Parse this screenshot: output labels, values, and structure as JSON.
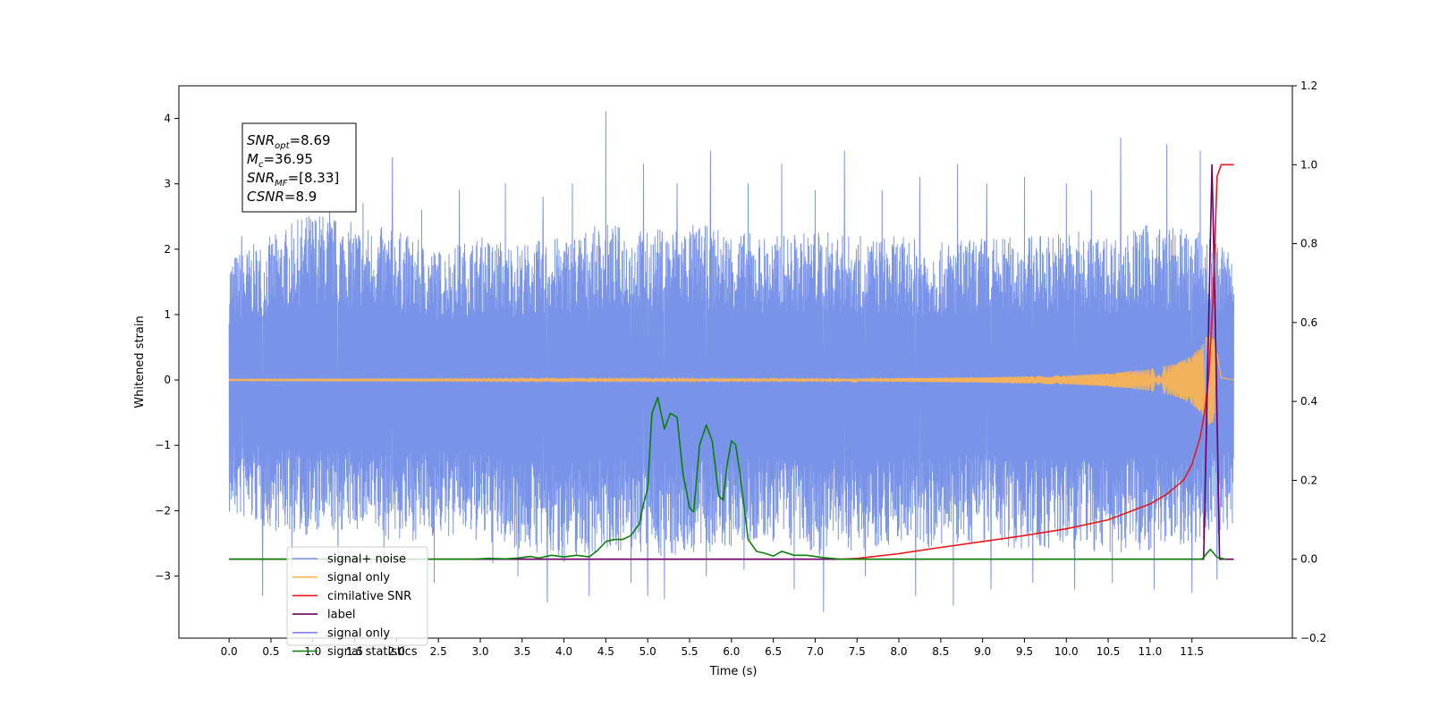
{
  "chart_data": {
    "type": "line",
    "xlabel": "Time (s)",
    "ylabel": "Whitened strain",
    "xlim": [
      -0.6,
      12.7
    ],
    "ylim": [
      -3.95,
      4.5
    ],
    "y2lim": [
      -0.2,
      1.2
    ],
    "x_ticks": [
      0.0,
      0.5,
      1.0,
      1.5,
      2.0,
      2.5,
      3.0,
      3.5,
      4.0,
      4.5,
      5.0,
      5.5,
      6.0,
      6.5,
      7.0,
      7.5,
      8.0,
      8.5,
      9.0,
      9.5,
      10.0,
      10.5,
      11.0,
      11.5
    ],
    "x_tick_labels": [
      "0.0",
      "0.5",
      "1.0",
      "1.5",
      "2.0",
      "2.5",
      "3.0",
      "3.5",
      "4.0",
      "4.5",
      "5.0",
      "5.5",
      "6.0",
      "6.5",
      "7.0",
      "7.5",
      "8.0",
      "8.5",
      "9.0",
      "9.5",
      "10.0",
      "10.5",
      "11.0",
      "11.5"
    ],
    "y_ticks": [
      -3,
      -2,
      -1,
      0,
      1,
      2,
      3,
      4
    ],
    "y_tick_labels": [
      "−3",
      "−2",
      "−1",
      "0",
      "1",
      "2",
      "3",
      "4"
    ],
    "y2_ticks": [
      -0.2,
      0.0,
      0.2,
      0.4,
      0.6,
      0.8,
      1.0,
      1.2
    ],
    "y2_tick_labels": [
      "−0.2",
      "0.0",
      "0.2",
      "0.4",
      "0.6",
      "0.8",
      "1.0",
      "1.2"
    ],
    "grid": false,
    "legend_position": "lower-left",
    "annotation": {
      "lines": [
        {
          "base": "SNR",
          "sub": "opt",
          "value": "=8.69"
        },
        {
          "base": "M",
          "sub": "c",
          "value": "=36.95"
        },
        {
          "base": "SNR",
          "sub": "MF",
          "value": "=[8.33]"
        },
        {
          "base": "CSNR",
          "sub": "",
          "value": "=8.9"
        }
      ]
    },
    "series": [
      {
        "name": "signal+ noise",
        "axis": "left",
        "color": "#7893e7",
        "x_range": [
          0.0,
          12.0
        ],
        "envelope_upper": [
          [
            0.0,
            1.9
          ],
          [
            0.5,
            2.2
          ],
          [
            1.0,
            2.6
          ],
          [
            1.5,
            2.4
          ],
          [
            2.0,
            2.3
          ],
          [
            2.5,
            2.0
          ],
          [
            3.0,
            2.2
          ],
          [
            3.5,
            2.1
          ],
          [
            4.0,
            2.2
          ],
          [
            4.5,
            2.4
          ],
          [
            5.0,
            2.3
          ],
          [
            5.5,
            2.4
          ],
          [
            6.0,
            2.3
          ],
          [
            6.5,
            2.2
          ],
          [
            7.0,
            2.3
          ],
          [
            7.5,
            2.2
          ],
          [
            8.0,
            2.2
          ],
          [
            8.5,
            2.1
          ],
          [
            9.0,
            2.2
          ],
          [
            9.5,
            2.2
          ],
          [
            10.0,
            2.3
          ],
          [
            10.5,
            2.2
          ],
          [
            11.0,
            2.4
          ],
          [
            11.5,
            2.3
          ],
          [
            12.0,
            2.0
          ]
        ],
        "envelope_lower": [
          [
            0.0,
            -2.1
          ],
          [
            0.5,
            -2.3
          ],
          [
            1.0,
            -2.4
          ],
          [
            1.5,
            -2.3
          ],
          [
            2.0,
            -2.5
          ],
          [
            2.5,
            -2.4
          ],
          [
            3.0,
            -2.5
          ],
          [
            3.5,
            -2.6
          ],
          [
            4.0,
            -2.8
          ],
          [
            4.5,
            -2.6
          ],
          [
            5.0,
            -2.7
          ],
          [
            5.5,
            -2.7
          ],
          [
            6.0,
            -2.6
          ],
          [
            6.5,
            -2.5
          ],
          [
            7.0,
            -2.7
          ],
          [
            7.5,
            -2.6
          ],
          [
            8.0,
            -2.5
          ],
          [
            8.5,
            -2.6
          ],
          [
            9.0,
            -2.5
          ],
          [
            9.5,
            -2.6
          ],
          [
            10.0,
            -2.6
          ],
          [
            10.5,
            -2.7
          ],
          [
            11.0,
            -2.6
          ],
          [
            11.5,
            -2.5
          ],
          [
            12.0,
            -2.3
          ]
        ],
        "peaks": [
          [
            0.15,
            2.2
          ],
          [
            0.4,
            2.5
          ],
          [
            0.75,
            2.9
          ],
          [
            1.2,
            3.1
          ],
          [
            1.6,
            2.7
          ],
          [
            1.95,
            3.4
          ],
          [
            2.3,
            2.6
          ],
          [
            2.75,
            2.9
          ],
          [
            3.3,
            3.0
          ],
          [
            3.75,
            2.8
          ],
          [
            4.1,
            3.0
          ],
          [
            4.5,
            4.1
          ],
          [
            4.95,
            3.3
          ],
          [
            5.35,
            3.0
          ],
          [
            5.75,
            3.5
          ],
          [
            6.2,
            3.0
          ],
          [
            6.6,
            3.3
          ],
          [
            7.0,
            2.9
          ],
          [
            7.35,
            3.5
          ],
          [
            7.8,
            2.9
          ],
          [
            8.25,
            3.1
          ],
          [
            8.7,
            3.3
          ],
          [
            9.05,
            3.0
          ],
          [
            9.5,
            3.1
          ],
          [
            10.0,
            3.0
          ],
          [
            10.3,
            2.9
          ],
          [
            10.65,
            3.7
          ],
          [
            11.2,
            3.6
          ],
          [
            11.6,
            3.5
          ]
        ],
        "troughs": [
          [
            0.4,
            -3.3
          ],
          [
            0.75,
            -2.9
          ],
          [
            1.3,
            -2.8
          ],
          [
            1.85,
            -2.9
          ],
          [
            2.45,
            -3.1
          ],
          [
            3.15,
            -2.8
          ],
          [
            3.45,
            -3.0
          ],
          [
            3.8,
            -3.4
          ],
          [
            4.3,
            -3.3
          ],
          [
            4.8,
            -3.1
          ],
          [
            5.0,
            -3.3
          ],
          [
            5.2,
            -3.35
          ],
          [
            5.7,
            -3.0
          ],
          [
            6.15,
            -2.9
          ],
          [
            6.75,
            -3.2
          ],
          [
            7.1,
            -3.55
          ],
          [
            7.6,
            -3.0
          ],
          [
            8.2,
            -3.3
          ],
          [
            8.65,
            -3.45
          ],
          [
            9.1,
            -3.2
          ],
          [
            9.6,
            -3.1
          ],
          [
            10.1,
            -3.2
          ],
          [
            10.55,
            -3.1
          ],
          [
            11.05,
            -3.2
          ],
          [
            11.5,
            -3.25
          ],
          [
            11.8,
            -3.05
          ]
        ]
      },
      {
        "name": "signal only",
        "axis": "left",
        "color": "#ffb64d",
        "x_range": [
          0.0,
          12.0
        ],
        "amplitude_envelope": [
          [
            0.0,
            0.01
          ],
          [
            7.5,
            0.02
          ],
          [
            9.0,
            0.04
          ],
          [
            10.0,
            0.07
          ],
          [
            10.5,
            0.1
          ],
          [
            11.0,
            0.17
          ],
          [
            11.3,
            0.25
          ],
          [
            11.5,
            0.38
          ],
          [
            11.6,
            0.5
          ],
          [
            11.7,
            0.7
          ],
          [
            11.8,
            0.6
          ],
          [
            11.85,
            0.05
          ],
          [
            12.0,
            0.0
          ]
        ]
      },
      {
        "name": "cimilative SNR",
        "axis": "right",
        "color": "#e8191a",
        "x": [
          0.0,
          7.3,
          7.5,
          8.0,
          8.5,
          9.0,
          9.5,
          10.0,
          10.5,
          11.0,
          11.2,
          11.4,
          11.5,
          11.6,
          11.65,
          11.7,
          11.75,
          11.8,
          11.85,
          11.9,
          12.0
        ],
        "y": [
          0.0,
          0.0,
          0.002,
          0.014,
          0.03,
          0.045,
          0.06,
          0.077,
          0.1,
          0.14,
          0.165,
          0.2,
          0.24,
          0.31,
          0.37,
          0.46,
          0.65,
          0.97,
          1.0,
          1.0,
          1.0
        ]
      },
      {
        "name": "label",
        "axis": "right",
        "color": "#6a006a",
        "x": [
          0.0,
          11.6,
          11.64,
          11.7,
          11.74,
          11.78,
          11.83,
          12.0
        ],
        "y": [
          0.0,
          0.0,
          0.0,
          0.6,
          1.0,
          0.6,
          0.0,
          0.0
        ]
      },
      {
        "name": "signal only",
        "axis": "right",
        "color": "#8080ff",
        "x": [],
        "y": []
      },
      {
        "name": "signal statistics",
        "axis": "right",
        "color": "#0b7f0b",
        "x": [
          0.0,
          2.9,
          3.1,
          3.3,
          3.45,
          3.6,
          3.7,
          3.85,
          4.0,
          4.15,
          4.3,
          4.4,
          4.5,
          4.6,
          4.7,
          4.8,
          4.9,
          4.95,
          5.0,
          5.05,
          5.12,
          5.2,
          5.27,
          5.35,
          5.42,
          5.5,
          5.55,
          5.62,
          5.7,
          5.77,
          5.85,
          5.9,
          5.95,
          6.0,
          6.05,
          6.1,
          6.2,
          6.3,
          6.4,
          6.5,
          6.6,
          6.75,
          6.9,
          7.1,
          7.3,
          11.5,
          11.62,
          11.72,
          11.8,
          11.9
        ],
        "y": [
          0.0,
          0.0,
          0.002,
          0.001,
          0.003,
          0.007,
          0.003,
          0.01,
          0.006,
          0.01,
          0.006,
          0.022,
          0.045,
          0.05,
          0.05,
          0.06,
          0.09,
          0.14,
          0.18,
          0.37,
          0.41,
          0.33,
          0.37,
          0.36,
          0.22,
          0.13,
          0.12,
          0.29,
          0.34,
          0.3,
          0.16,
          0.15,
          0.24,
          0.3,
          0.29,
          0.22,
          0.05,
          0.02,
          0.015,
          0.008,
          0.02,
          0.01,
          0.01,
          0.004,
          0.0,
          0.0,
          0.0,
          0.025,
          0.005,
          0.0
        ]
      }
    ]
  }
}
